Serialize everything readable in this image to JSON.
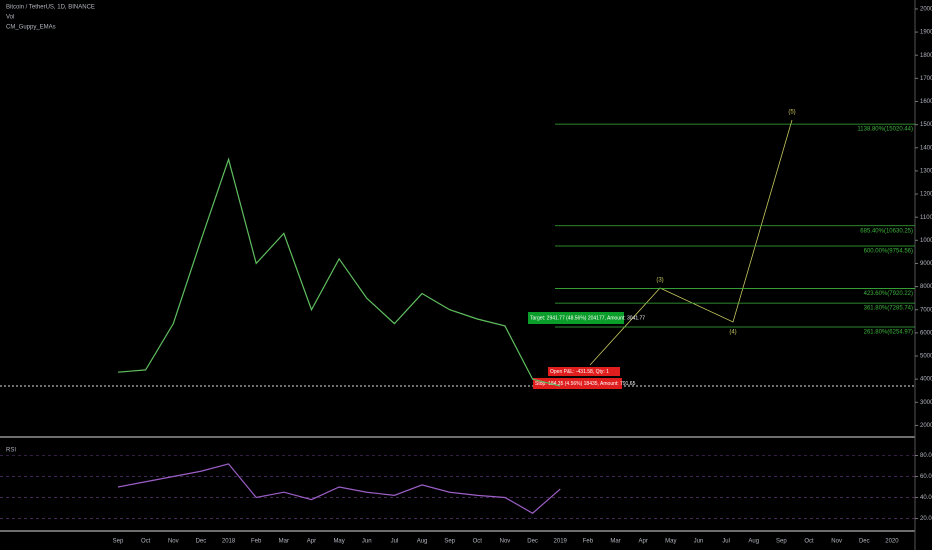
{
  "chart_data": [
    {
      "type": "line",
      "title": "Bitcoin / TetherUS, 1D, BINANCE",
      "subtitles": [
        "Vol",
        "CM_Guppy_EMAs"
      ],
      "categories": [
        "Sep",
        "Oct",
        "Nov",
        "Dec",
        "2018",
        "Feb",
        "Mar",
        "Apr",
        "May",
        "Jun",
        "Jul",
        "Aug",
        "Sep",
        "Oct",
        "Nov",
        "Dec",
        "2019",
        "Feb",
        "Mar",
        "Apr",
        "May",
        "Jun",
        "Jul",
        "Aug",
        "Sep",
        "Oct",
        "Nov",
        "Dec",
        "2020"
      ],
      "values": [
        4300,
        4400,
        6400,
        10000,
        13500,
        9000,
        10300,
        7000,
        9200,
        7500,
        6400,
        7700,
        7000,
        6600,
        6300,
        4000,
        3700,
        null,
        null,
        null,
        null,
        null,
        null,
        null,
        null,
        null,
        null,
        null,
        null
      ],
      "color": "#5fbf5f",
      "ylim": [
        1500,
        20300
      ],
      "yticks": [
        {
          "value": 2000,
          "label": "2000.00"
        },
        {
          "value": 3000,
          "label": "3000.00"
        },
        {
          "value": 4000,
          "label": "4000.00"
        },
        {
          "value": 5000,
          "label": "5000.00"
        },
        {
          "value": 6000,
          "label": "6000.00"
        },
        {
          "value": 7000,
          "label": "7000.00"
        },
        {
          "value": 8000,
          "label": "8000.00"
        },
        {
          "value": 9000,
          "label": "9000.00"
        },
        {
          "value": 10000,
          "label": "10000.00"
        },
        {
          "value": 11000,
          "label": "11000.00"
        },
        {
          "value": 12000,
          "label": "12000.00"
        },
        {
          "value": 13000,
          "label": "13000.00"
        },
        {
          "value": 14000,
          "label": "14000.00"
        },
        {
          "value": 15000,
          "label": "15000.00"
        },
        {
          "value": 16000,
          "label": "16000.00"
        },
        {
          "value": 17000,
          "label": "17000.00"
        },
        {
          "value": 18000,
          "label": "18000.00"
        },
        {
          "value": 19000,
          "label": "19000.00"
        },
        {
          "value": 20000,
          "label": "20000.00"
        }
      ],
      "levels": [
        {
          "label": "1138.80%(15020.44)",
          "value": 15020.44
        },
        {
          "label": "685.40%(10630.25)",
          "value": 10630.25
        },
        {
          "label": "600.00%(9754.56)",
          "value": 9754.56
        },
        {
          "label": "423.60%(7920.22)",
          "value": 7920.22
        },
        {
          "label": "361.80%(7285.74)",
          "value": 7285.74
        },
        {
          "label": "261.80%(6254.97)",
          "value": 6254.97
        }
      ],
      "level_color": "#3cb43c",
      "wave_labels": [
        "(3)",
        "(4)",
        "(5)"
      ],
      "orders": [
        "Target: 2941.77 (48.56%) 204177, Amount: 3041.77",
        "Open P&L: -431.58, Qty: 1",
        "Stop: 184.35 (4.56%) 18435, Amount: 791.65"
      ]
    },
    {
      "type": "line",
      "title": "RSI",
      "categories": [
        "Sep",
        "Oct",
        "Nov",
        "Dec",
        "2018",
        "Feb",
        "Mar",
        "Apr",
        "May",
        "Jun",
        "Jul",
        "Aug",
        "Sep",
        "Oct",
        "Nov",
        "Dec",
        "2019",
        "Feb",
        "Mar",
        "Apr",
        "May",
        "Jun",
        "Jul",
        "Aug",
        "Sep",
        "Oct",
        "Nov",
        "Dec",
        "2020"
      ],
      "values": [
        50,
        55,
        60,
        65,
        72,
        40,
        45,
        38,
        50,
        45,
        42,
        52,
        45,
        42,
        40,
        25,
        48,
        null,
        null,
        null,
        null,
        null,
        null,
        null,
        null,
        null,
        null,
        null,
        null
      ],
      "color": "#9c5fc7",
      "ylim": [
        9,
        90
      ],
      "yticks": [
        {
          "value": 20,
          "label": "20.0000"
        },
        {
          "value": 40,
          "label": "40.0000"
        },
        {
          "value": 60,
          "label": "60.0000"
        },
        {
          "value": 80,
          "label": "80.0000"
        }
      ]
    }
  ]
}
